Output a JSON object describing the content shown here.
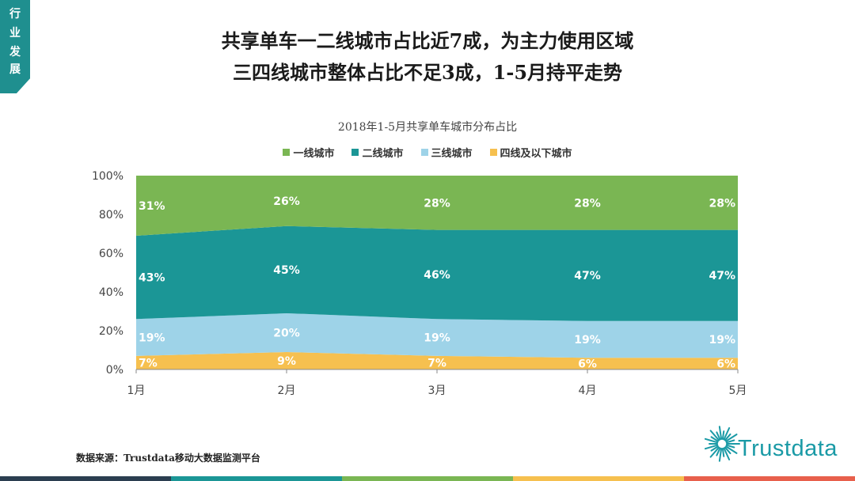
{
  "side_tab": {
    "chars": [
      "行",
      "业",
      "发",
      "展"
    ]
  },
  "page_title": {
    "line1": "共享单车一二线城市占比近7成，为主力使用区域",
    "line2": "三四线城市整体占比不足3成，1-5月持平走势"
  },
  "chart_data": {
    "type": "area",
    "stacked": "percent",
    "title": "2018年1-5月共享单车城市分布占比",
    "categories": [
      "1月",
      "2月",
      "3月",
      "4月",
      "5月"
    ],
    "y_ticks": [
      "0%",
      "20%",
      "40%",
      "60%",
      "80%",
      "100%"
    ],
    "ylim": [
      0,
      100
    ],
    "legend_position": "top-center",
    "series": [
      {
        "name": "四线及以下城市",
        "color": "#f6c04f",
        "values": [
          7,
          9,
          7,
          6,
          6
        ],
        "labels": [
          "7%",
          "9%",
          "7%",
          "6%",
          "6%"
        ]
      },
      {
        "name": "三线城市",
        "color": "#9ed3e8",
        "values": [
          19,
          20,
          19,
          19,
          19
        ],
        "labels": [
          "19%",
          "20%",
          "19%",
          "19%",
          "19%"
        ]
      },
      {
        "name": "二线城市",
        "color": "#1b9696",
        "values": [
          43,
          45,
          46,
          47,
          47
        ],
        "labels": [
          "43%",
          "45%",
          "46%",
          "47%",
          "47%"
        ]
      },
      {
        "name": "一线城市",
        "color": "#7ab653",
        "values": [
          31,
          26,
          28,
          28,
          28
        ],
        "labels": [
          "31%",
          "26%",
          "28%",
          "28%",
          "28%"
        ]
      }
    ],
    "legend_order": [
      "一线城市",
      "二线城市",
      "三线城市",
      "四线及以下城市"
    ]
  },
  "source": {
    "text": "数据来源：Trustdata移动大数据监测平台"
  },
  "logo": {
    "text": "Trustdata",
    "color": "#1a9aa6"
  },
  "bottom_bar": {
    "colors": [
      "#2b3e50",
      "#1b9696",
      "#7ab653",
      "#f6c04f",
      "#e8604c"
    ]
  }
}
